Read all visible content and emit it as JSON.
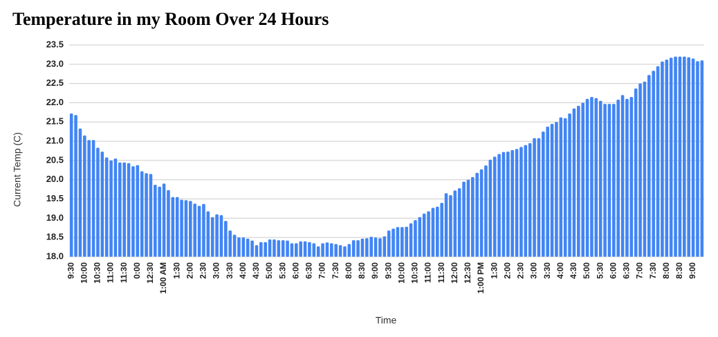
{
  "chart_data": {
    "type": "bar",
    "title": "Temperature in my Room Over 24 Hours",
    "x_label": "Time",
    "y_label": "Current Temp (C)",
    "color": "#4285f4",
    "grid": true,
    "ylim": [
      18.0,
      23.5
    ],
    "yticks": [
      {
        "value": 18,
        "label": "18.0"
      },
      18.5,
      {
        "value": 19,
        "label": "19.0"
      },
      19.5,
      {
        "value": 20,
        "label": "20.0"
      },
      20.5,
      {
        "value": 21,
        "label": "21.0"
      },
      21.5,
      {
        "value": 22,
        "label": "22.0"
      },
      22.5,
      {
        "value": 23,
        "label": "23.0"
      },
      23.5
    ],
    "categories": [
      "9:30",
      null,
      null,
      "10:00",
      null,
      null,
      "10:30",
      null,
      null,
      "11:00",
      null,
      null,
      "11:30",
      null,
      null,
      "0:00",
      null,
      null,
      "12:30",
      null,
      null,
      "1:00 AM",
      null,
      null,
      "1:30",
      null,
      null,
      "2:00",
      null,
      null,
      "2:30",
      null,
      null,
      "3:00",
      null,
      null,
      "3:30",
      null,
      null,
      "4:00",
      null,
      null,
      "4:30",
      null,
      null,
      "5:00",
      null,
      null,
      "5:30",
      null,
      null,
      "6:00",
      null,
      null,
      "6:30",
      null,
      null,
      "7:00",
      null,
      null,
      "7:30",
      null,
      null,
      "8:00",
      null,
      null,
      "8:30",
      null,
      null,
      "9:00",
      null,
      null,
      "9:30",
      null,
      null,
      "10:00",
      null,
      null,
      "10:30",
      null,
      null,
      "11:00",
      null,
      null,
      "11:30",
      null,
      null,
      "12:00",
      null,
      null,
      "12:30",
      null,
      null,
      "1:00 PM",
      null,
      null,
      "1:30",
      null,
      null,
      "2:00",
      null,
      null,
      "2:30",
      null,
      null,
      "3:00",
      null,
      null,
      "3:30",
      null,
      null,
      "4:00",
      null,
      null,
      "4:30",
      null,
      null,
      "5:00",
      null,
      null,
      "5:30",
      null,
      null,
      "6:00",
      null,
      null,
      "6:30",
      null,
      null,
      "7:00",
      null,
      null,
      "7:30",
      null,
      null,
      "8:00",
      null,
      null,
      "8:30",
      null,
      null,
      "9:00",
      null,
      null
    ],
    "values": [
      21.72,
      21.68,
      21.33,
      21.15,
      21.03,
      21.03,
      20.83,
      20.73,
      20.58,
      20.5,
      20.55,
      20.45,
      20.45,
      20.43,
      20.35,
      20.38,
      20.22,
      20.17,
      20.15,
      19.87,
      19.82,
      19.9,
      19.73,
      19.55,
      19.55,
      19.48,
      19.47,
      19.45,
      19.38,
      19.32,
      19.37,
      19.18,
      19.03,
      19.1,
      19.08,
      18.93,
      18.68,
      18.57,
      18.5,
      18.5,
      18.47,
      18.42,
      18.3,
      18.38,
      18.38,
      18.45,
      18.45,
      18.43,
      18.43,
      18.42,
      18.35,
      18.35,
      18.4,
      18.4,
      18.38,
      18.35,
      18.27,
      18.35,
      18.37,
      18.35,
      18.33,
      18.3,
      18.27,
      18.33,
      18.43,
      18.43,
      18.47,
      18.48,
      18.52,
      18.5,
      18.48,
      18.53,
      18.68,
      18.73,
      18.77,
      18.77,
      18.78,
      18.87,
      18.95,
      19.03,
      19.12,
      19.18,
      19.27,
      19.3,
      19.4,
      19.65,
      19.6,
      19.72,
      19.78,
      19.95,
      20.0,
      20.07,
      20.18,
      20.27,
      20.37,
      20.52,
      20.6,
      20.67,
      20.72,
      20.73,
      20.77,
      20.8,
      20.85,
      20.9,
      20.95,
      21.08,
      21.08,
      21.25,
      21.38,
      21.45,
      21.5,
      21.62,
      21.6,
      21.72,
      21.85,
      21.92,
      22.0,
      22.1,
      22.15,
      22.12,
      22.05,
      21.97,
      21.97,
      21.97,
      22.08,
      22.2,
      22.1,
      22.15,
      22.37,
      22.5,
      22.55,
      22.72,
      22.83,
      22.95,
      23.07,
      23.12,
      23.17,
      23.2,
      23.2,
      23.2,
      23.18,
      23.15,
      23.08,
      23.1
    ]
  }
}
